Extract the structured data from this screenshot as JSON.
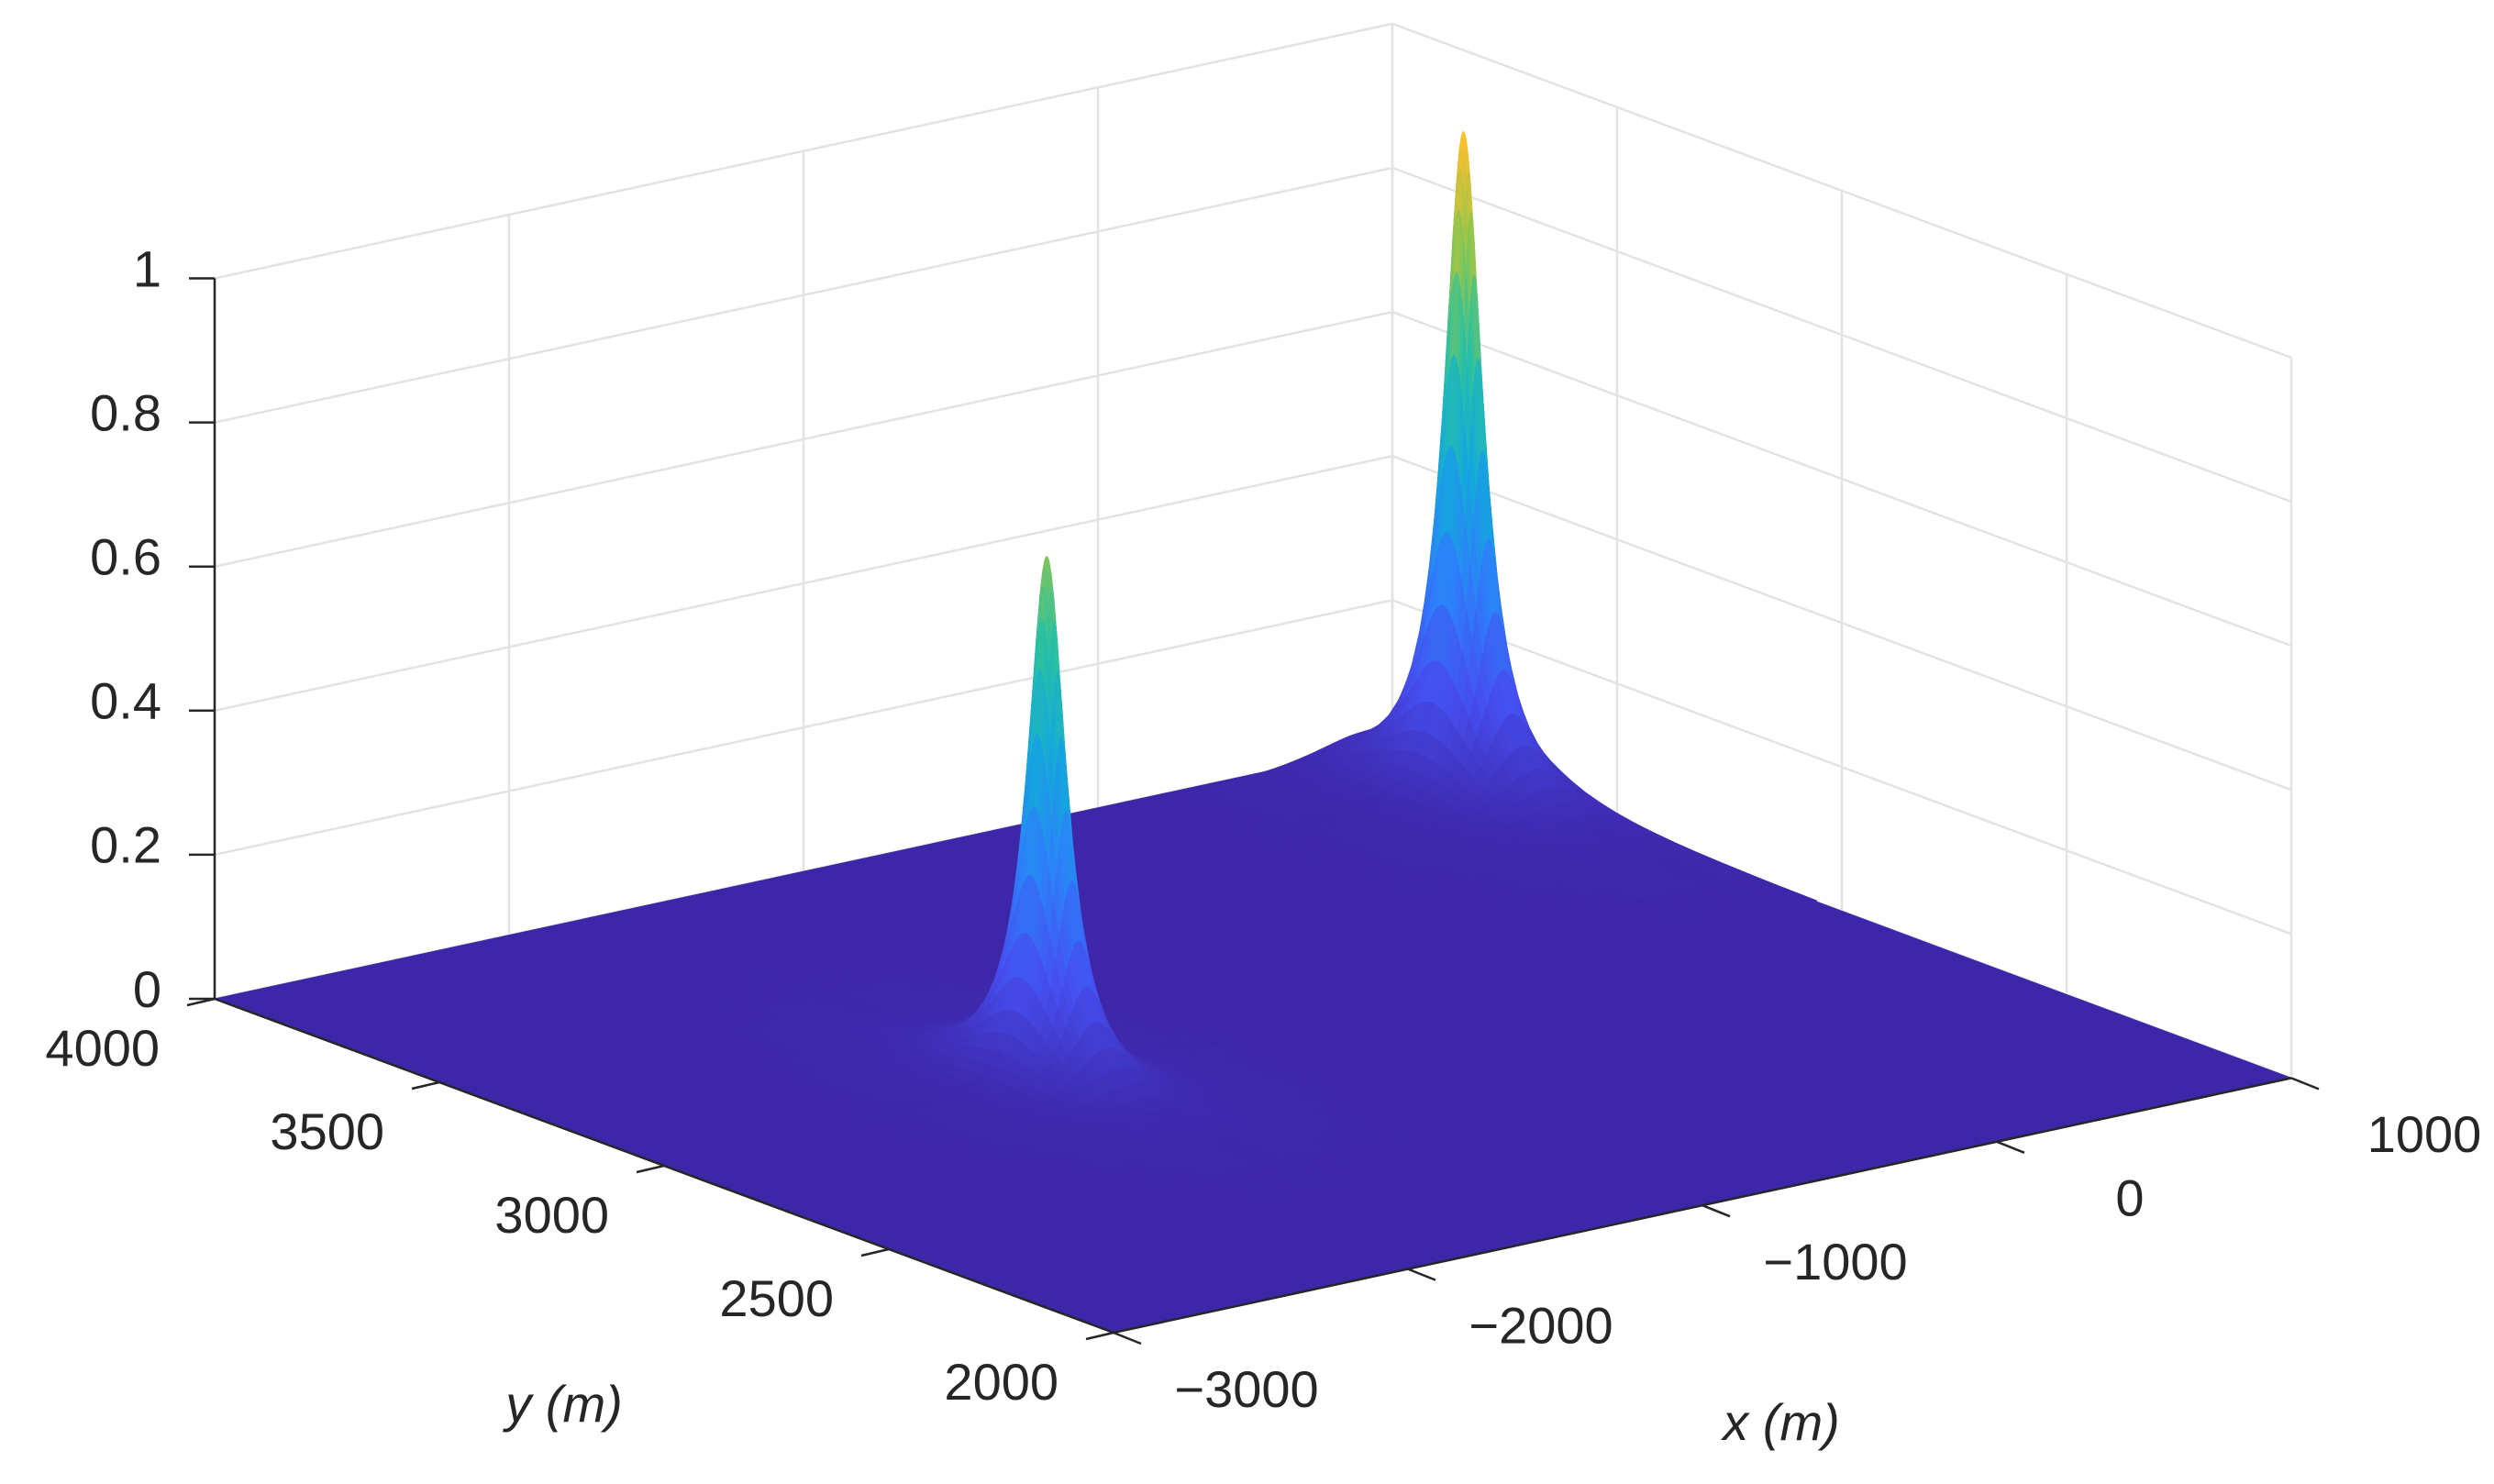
{
  "chart_data": {
    "type": "surface",
    "xlabel": "x (m)",
    "ylabel": "y (m)",
    "xlim": [
      -3000,
      1000
    ],
    "ylim": [
      2000,
      4000
    ],
    "zlim": [
      0,
      1
    ],
    "xticks": [
      {
        "value": -3000,
        "label": "−3000"
      },
      {
        "value": -2000,
        "label": "−2000"
      },
      {
        "value": -1000,
        "label": "−1000"
      },
      0,
      1000
    ],
    "yticks": [
      2000,
      2500,
      3000,
      3500,
      4000
    ],
    "zticks": [
      0,
      0.2,
      0.4,
      0.6,
      0.8,
      1
    ],
    "grid": true,
    "peaks": [
      {
        "x": -1700,
        "y": 3000,
        "z": 0.73,
        "halfwidth": 45
      },
      {
        "x": 860,
        "y": 3750,
        "z": 0.92,
        "halfwidth": 45
      }
    ]
  }
}
